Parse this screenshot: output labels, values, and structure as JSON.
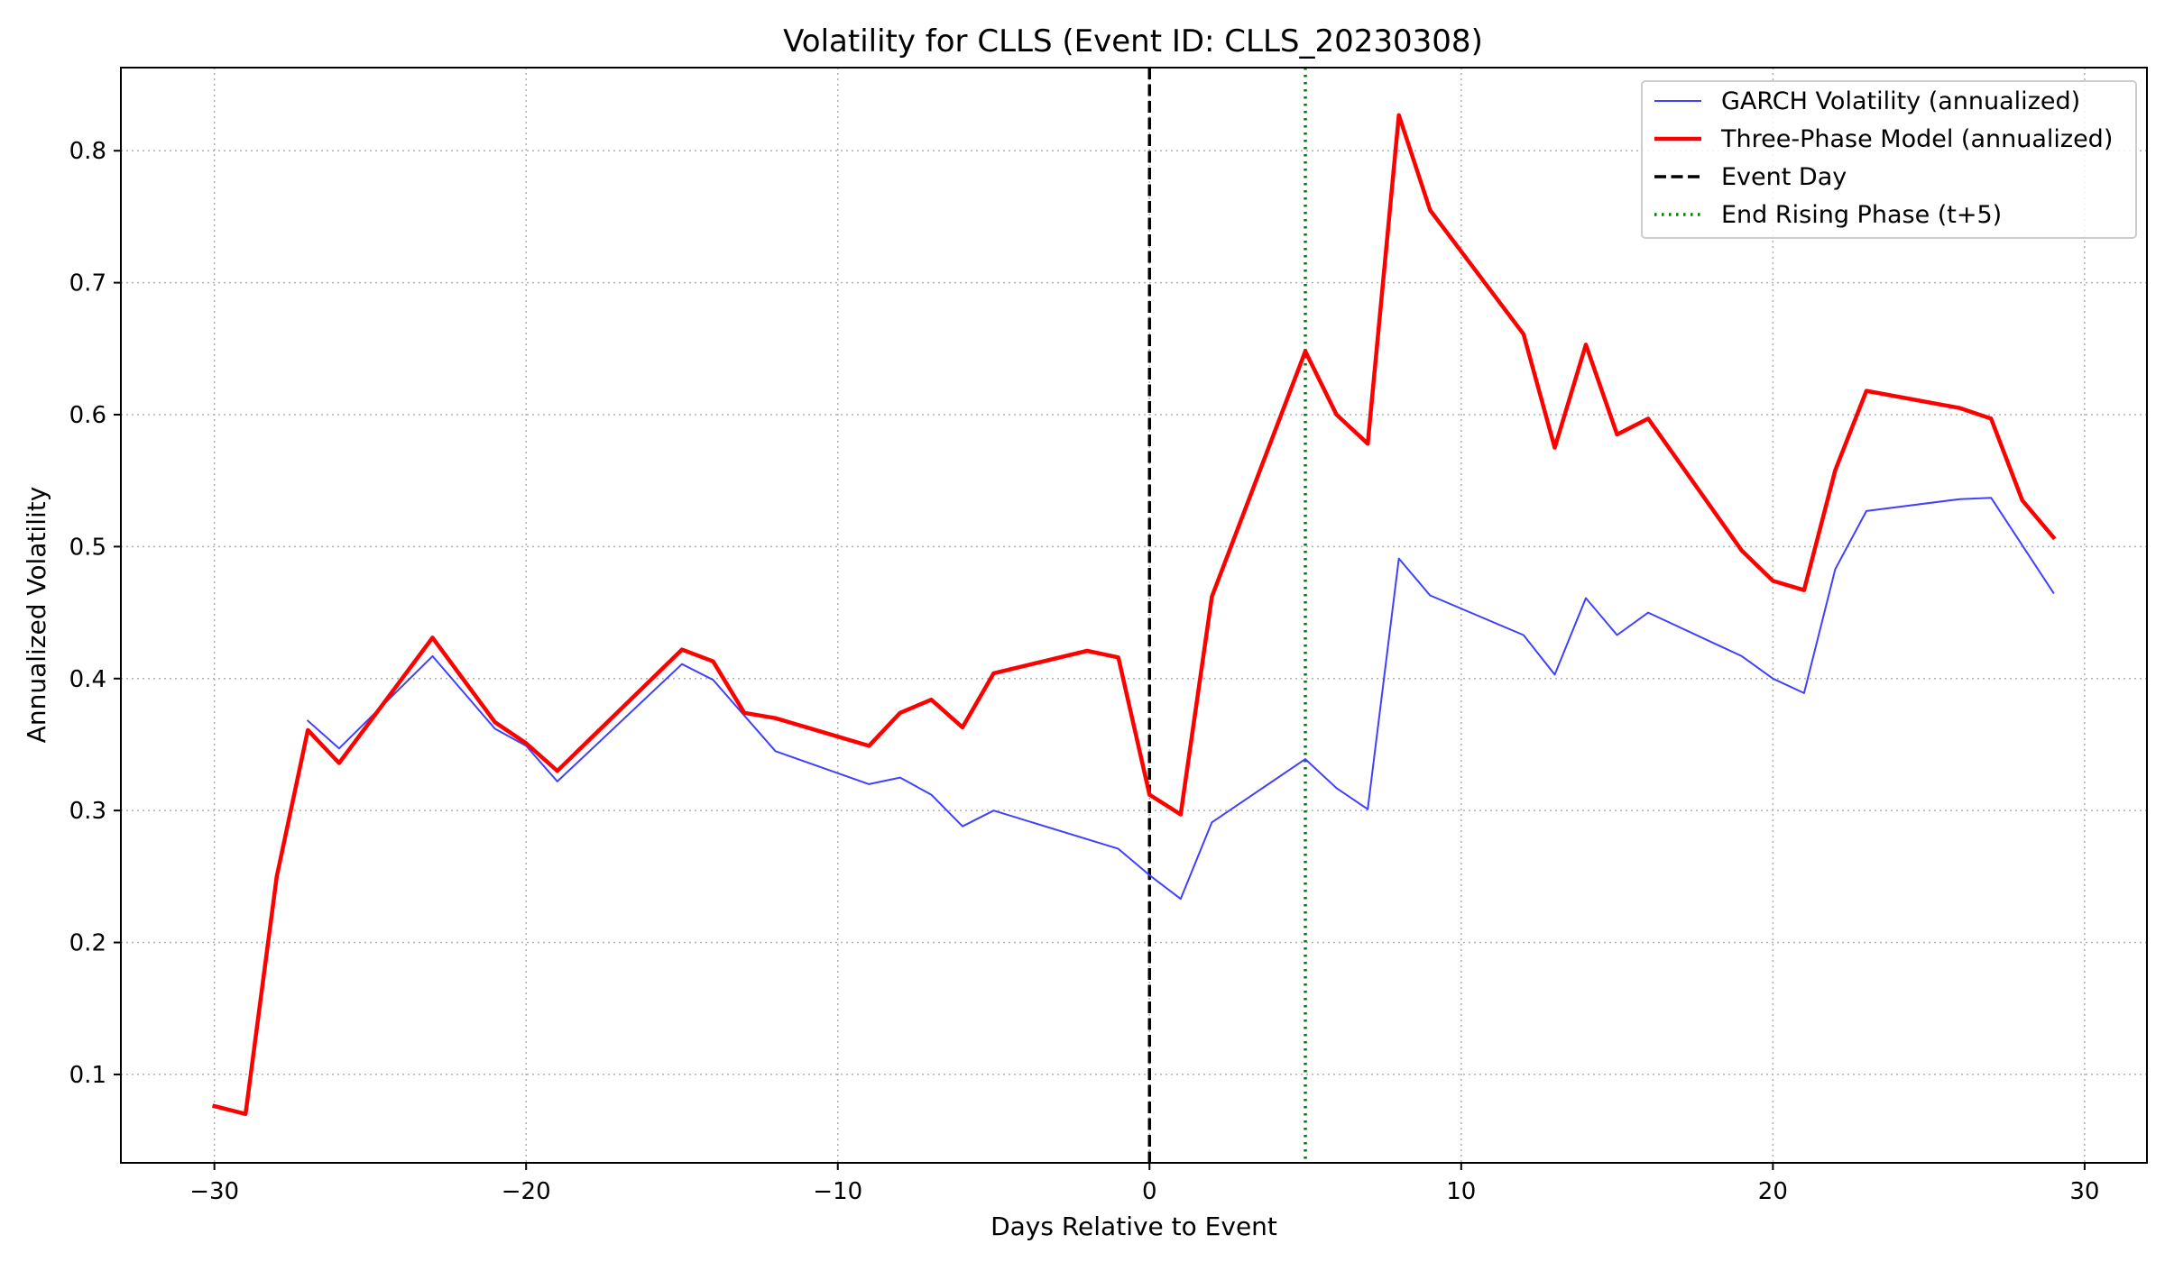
{
  "chart_data": {
    "type": "line",
    "title": "Volatility for CLLS (Event ID: CLLS_20230308)",
    "xlabel": "Days Relative to Event",
    "ylabel": "Annualized Volatility",
    "xlim": [
      -33,
      32
    ],
    "ylim": [
      0.033,
      0.863
    ],
    "xticks": [
      -30,
      -20,
      -10,
      0,
      10,
      20,
      30
    ],
    "xtick_labels": [
      "−30",
      "−20",
      "−10",
      "0",
      "10",
      "20",
      "30"
    ],
    "yticks": [
      0.1,
      0.2,
      0.3,
      0.4,
      0.5,
      0.6,
      0.7,
      0.8
    ],
    "ytick_labels": [
      "0.1",
      "0.2",
      "0.3",
      "0.4",
      "0.5",
      "0.6",
      "0.7",
      "0.8"
    ],
    "grid": true,
    "legend_position": "top-right",
    "series": [
      {
        "name": "GARCH Volatility (annualized)",
        "color": "#4040ff",
        "style": "solid-thin",
        "x": [
          -27,
          -26,
          -23,
          -21,
          -20,
          -19,
          -15,
          -14,
          -12,
          -9,
          -8,
          -7,
          -6,
          -5,
          -1,
          0,
          1,
          2,
          5,
          6,
          7,
          8,
          9,
          12,
          13,
          14,
          15,
          16,
          19,
          20,
          21,
          22,
          23,
          26,
          27,
          29
        ],
        "y": [
          0.368,
          0.347,
          0.417,
          0.362,
          0.349,
          0.322,
          0.411,
          0.399,
          0.345,
          0.32,
          0.325,
          0.312,
          0.288,
          0.3,
          0.271,
          0.251,
          0.233,
          0.291,
          0.339,
          0.317,
          0.301,
          0.491,
          0.463,
          0.433,
          0.403,
          0.461,
          0.433,
          0.45,
          0.417,
          0.4,
          0.389,
          0.483,
          0.527,
          0.536,
          0.537,
          0.465
        ]
      },
      {
        "name": "Three-Phase Model (annualized)",
        "color": "#ff0000",
        "style": "solid-thick",
        "x": [
          -30,
          -29,
          -28,
          -27,
          -26,
          -23,
          -21,
          -20,
          -19,
          -15,
          -14,
          -13,
          -12,
          -9,
          -8,
          -7,
          -6,
          -5,
          -2,
          -1,
          0,
          1,
          2,
          5,
          6,
          7,
          8,
          9,
          12,
          13,
          14,
          15,
          16,
          19,
          20,
          21,
          22,
          23,
          26,
          27,
          28,
          29
        ],
        "y": [
          0.076,
          0.07,
          0.25,
          0.361,
          0.336,
          0.431,
          0.367,
          0.351,
          0.33,
          0.422,
          0.413,
          0.374,
          0.37,
          0.349,
          0.374,
          0.384,
          0.363,
          0.404,
          0.421,
          0.416,
          0.312,
          0.297,
          0.462,
          0.648,
          0.6,
          0.578,
          0.827,
          0.755,
          0.661,
          0.575,
          0.653,
          0.585,
          0.597,
          0.497,
          0.474,
          0.467,
          0.558,
          0.618,
          0.605,
          0.597,
          0.535,
          0.507
        ]
      }
    ],
    "reference_lines": [
      {
        "name": "Event Day",
        "x": 0,
        "color": "#000000",
        "style": "dashed"
      },
      {
        "name": "End Rising Phase (t+5)",
        "x": 5,
        "color": "#008000",
        "style": "dotted"
      }
    ]
  }
}
